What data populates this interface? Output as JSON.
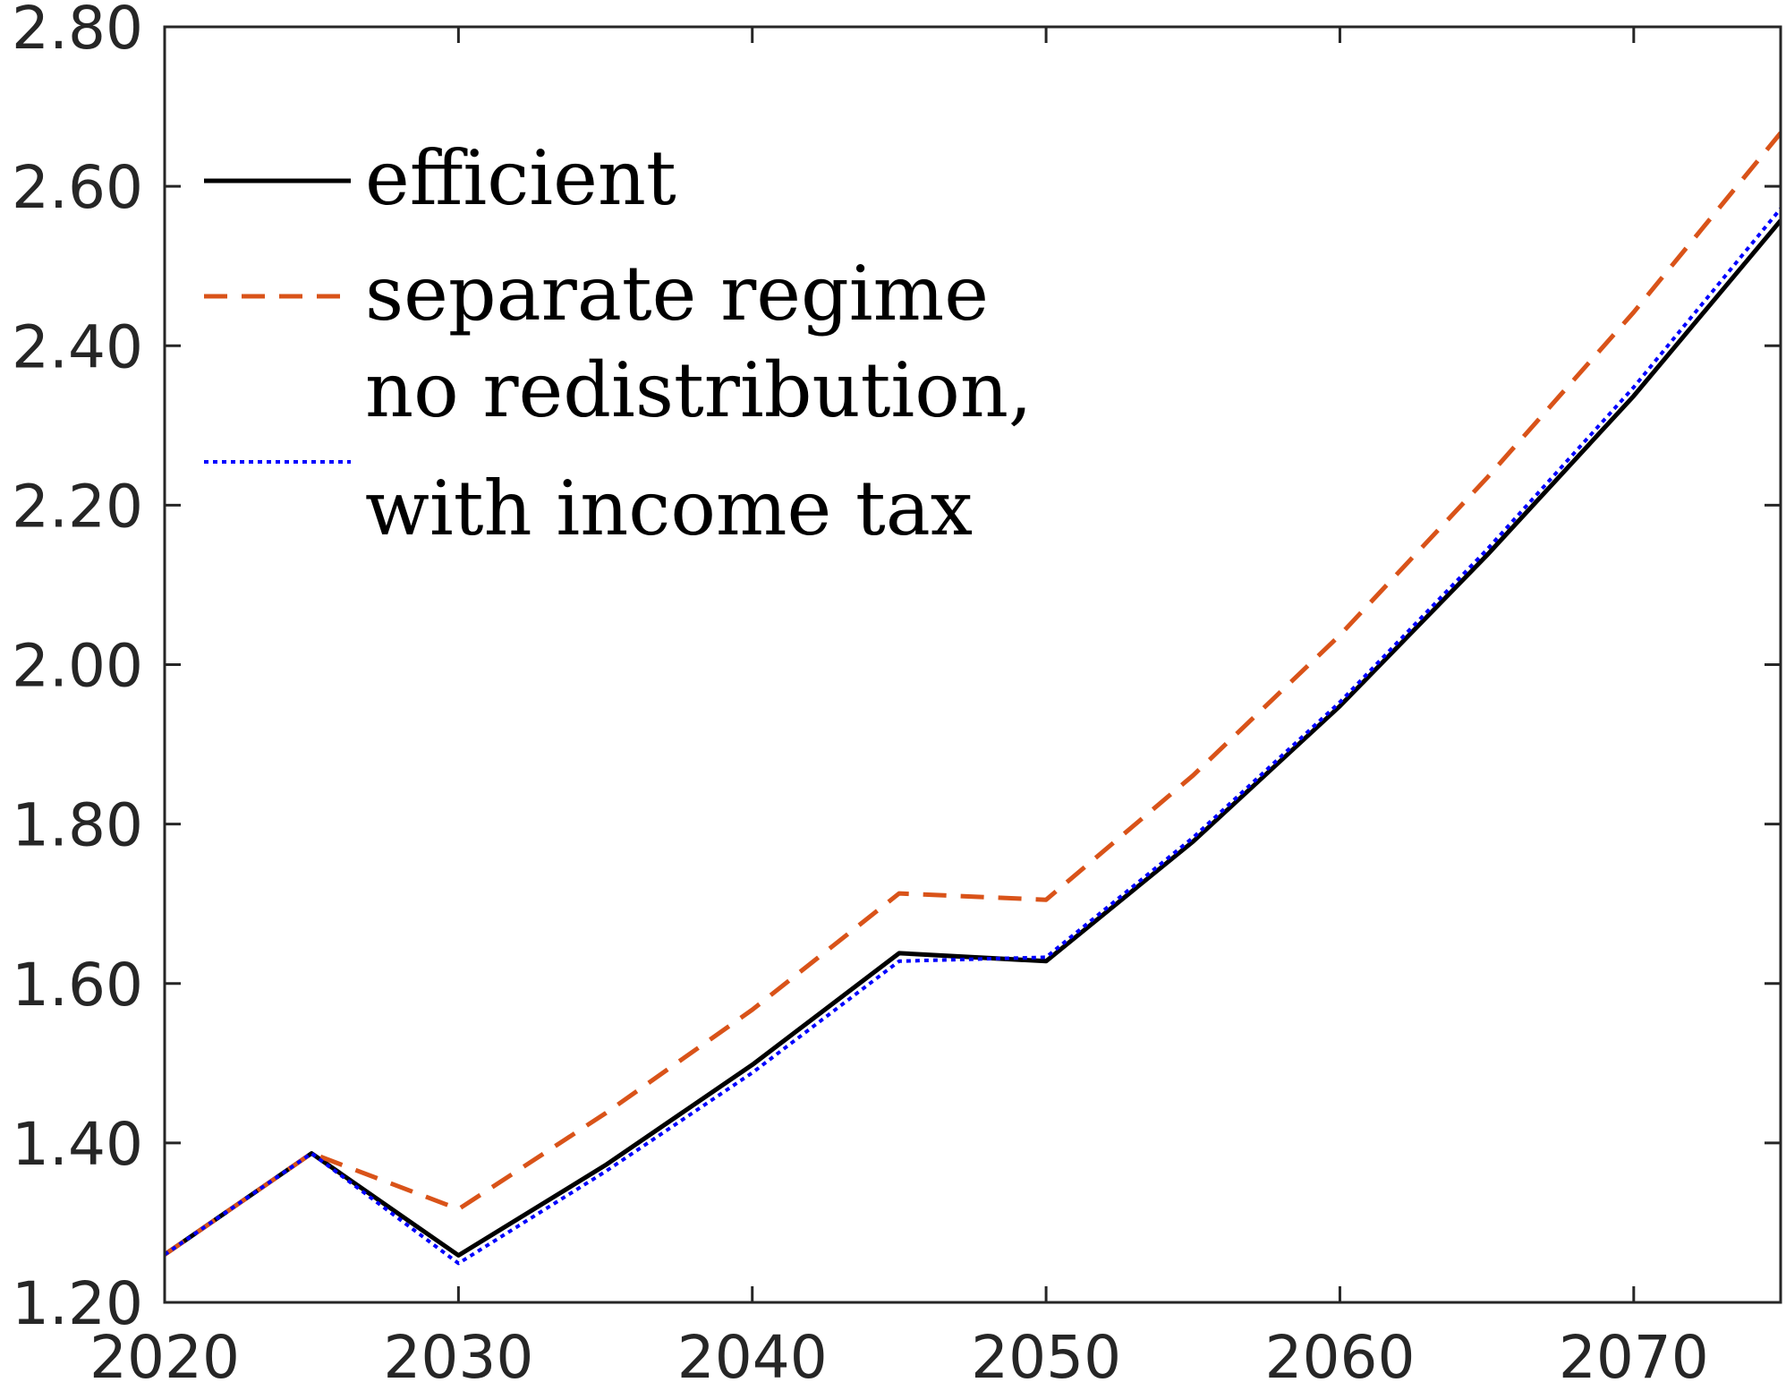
{
  "chart_data": {
    "type": "line",
    "title": "",
    "xlabel": "",
    "ylabel": "",
    "xlim": [
      2020,
      2075
    ],
    "ylim": [
      1.2,
      2.8
    ],
    "x_ticks": [
      2020,
      2030,
      2040,
      2050,
      2060,
      2070
    ],
    "x_tick_labels": [
      "2020",
      "2030",
      "2040",
      "2050",
      "2060",
      "2070"
    ],
    "y_ticks": [
      1.2,
      1.4,
      1.6,
      1.8,
      2.0,
      2.2,
      2.4,
      2.6,
      2.8
    ],
    "y_tick_labels": [
      "1.20",
      "1.40",
      "1.60",
      "1.80",
      "2.00",
      "2.20",
      "2.40",
      "2.60",
      "2.80"
    ],
    "grid": false,
    "legend_position": "top-left",
    "x": [
      2020,
      2025,
      2030,
      2035,
      2040,
      2045,
      2050,
      2055,
      2060,
      2065,
      2070,
      2075
    ],
    "series": [
      {
        "name": "efficient",
        "color": "#000000",
        "style": "solid",
        "values": [
          1.26,
          1.387,
          1.259,
          1.372,
          1.498,
          1.638,
          1.628,
          1.778,
          1.948,
          2.137,
          2.337,
          2.557
        ]
      },
      {
        "name": "separate regime",
        "color": "#d95319",
        "style": "dashed",
        "values": [
          1.26,
          1.387,
          1.317,
          1.437,
          1.567,
          1.713,
          1.705,
          1.861,
          2.037,
          2.234,
          2.442,
          2.667
        ]
      },
      {
        "name_lines": [
          "no redistribution,",
          "with income tax"
        ],
        "color": "#0000ff",
        "style": "dotted",
        "values": [
          1.26,
          1.387,
          1.249,
          1.364,
          1.488,
          1.628,
          1.633,
          1.783,
          1.953,
          2.144,
          2.348,
          2.572
        ]
      }
    ]
  }
}
